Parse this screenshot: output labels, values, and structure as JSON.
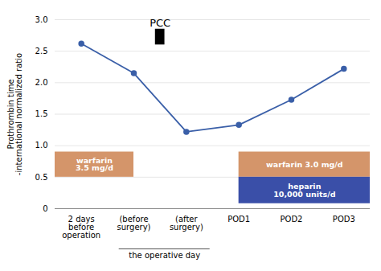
{
  "chart_data": {
    "type": "line",
    "categories": [
      "2 days\nbefore\noperation",
      "(before\nsurgery)",
      "(after\nsurgery)",
      "POD1",
      "POD2",
      "POD3"
    ],
    "values": [
      2.62,
      2.15,
      1.22,
      1.33,
      1.73,
      2.22
    ],
    "color": "#3a5fa8",
    "marker": "circle",
    "ylabel": "Prothrombin time\n-international normalized ratio",
    "ylim": [
      0,
      3.0
    ],
    "yticks": [
      0,
      0.5,
      {
        "value": 1.0,
        "label": "1.0"
      },
      {
        "value": 1.5,
        "label": "1.5"
      },
      {
        "value": 2.0,
        "label": "2.0"
      },
      {
        "value": 2.5,
        "label": "2.5"
      },
      {
        "value": 3.0,
        "label": "3.0"
      }
    ],
    "grid": true,
    "annotations": [
      {
        "type": "marker",
        "text": "PCC",
        "color": "black",
        "x_between": [
          "(before\nsurgery)",
          "(after\nsurgery)"
        ],
        "y_from": 2.6,
        "y_to": 2.85
      },
      {
        "type": "box",
        "text": "warfarin\n3.5 mg/d",
        "color": "#d4956a",
        "x_from": "2 days\nbefore\noperation",
        "x_to": "(before\nsurgery)",
        "y_from": 0.5,
        "y_to": 0.9
      },
      {
        "type": "box",
        "text": "warfarin 3.0 mg/d",
        "color": "#d4956a",
        "x_from": "POD1",
        "x_to": "POD3",
        "y_from": 0.5,
        "y_to": 0.9
      },
      {
        "type": "box",
        "text": "heparin\n10,000 units/d",
        "color": "#3a4fa8",
        "x_from": "POD1",
        "x_to": "POD3",
        "y_from": 0.08,
        "y_to": 0.5
      },
      {
        "type": "span",
        "text": "the operative day",
        "x_from": "(before\nsurgery)",
        "x_to": "(after\nsurgery)"
      }
    ]
  }
}
